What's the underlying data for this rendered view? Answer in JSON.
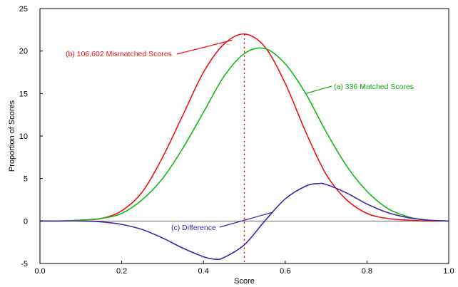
{
  "chart_data": {
    "type": "line",
    "xlabel": "Score",
    "ylabel": "Proportion of Scores",
    "xlim": [
      0,
      1
    ],
    "ylim": [
      -5,
      25
    ],
    "x_ticks": [
      "0.0",
      "0.2",
      "0.4",
      "0.6",
      "0.8",
      "1.0"
    ],
    "y_ticks": [
      "-5",
      "0",
      "5",
      "10",
      "15",
      "20",
      "25"
    ],
    "grid": false,
    "zero_line": true,
    "reference_line": {
      "x": 0.5,
      "style": "dotted",
      "color": "#cc0000"
    },
    "series": [
      {
        "name": "(b) 106,602 Mismatched Scores",
        "color": "#ee1111",
        "x": [
          0.0,
          0.05,
          0.1,
          0.15,
          0.2,
          0.25,
          0.3,
          0.35,
          0.4,
          0.45,
          0.5,
          0.55,
          0.6,
          0.65,
          0.7,
          0.75,
          0.8,
          0.85,
          0.9,
          0.95,
          1.0
        ],
        "y": [
          0.0,
          0.0,
          0.1,
          0.3,
          1.2,
          3.4,
          7.5,
          12.5,
          17.5,
          20.8,
          22.0,
          20.5,
          16.2,
          10.5,
          5.5,
          2.5,
          0.9,
          0.3,
          0.1,
          0.0,
          0.0
        ]
      },
      {
        "name": "(a) 336 Matched Scores",
        "color": "#11bb11",
        "x": [
          0.0,
          0.05,
          0.1,
          0.15,
          0.2,
          0.25,
          0.3,
          0.35,
          0.4,
          0.45,
          0.5,
          0.55,
          0.6,
          0.65,
          0.7,
          0.75,
          0.8,
          0.85,
          0.9,
          0.95,
          1.0
        ],
        "y": [
          0.0,
          0.0,
          0.1,
          0.3,
          0.9,
          2.5,
          5.0,
          8.6,
          12.8,
          17.0,
          19.7,
          20.3,
          18.5,
          15.0,
          10.5,
          6.5,
          3.5,
          1.5,
          0.5,
          0.1,
          0.0
        ]
      },
      {
        "name": "(c) Difference",
        "color": "#4422aa",
        "x": [
          0.0,
          0.05,
          0.1,
          0.15,
          0.2,
          0.25,
          0.3,
          0.35,
          0.4,
          0.43,
          0.45,
          0.5,
          0.55,
          0.6,
          0.65,
          0.68,
          0.7,
          0.75,
          0.8,
          0.85,
          0.9,
          0.95,
          1.0
        ],
        "y": [
          0.0,
          0.0,
          0.0,
          -0.1,
          -0.4,
          -1.0,
          -2.0,
          -3.2,
          -4.2,
          -4.5,
          -4.3,
          -2.8,
          0.0,
          2.6,
          4.1,
          4.4,
          4.3,
          3.3,
          2.0,
          1.0,
          0.4,
          0.1,
          0.0
        ]
      }
    ],
    "annotations": [
      {
        "text": "(b) 106,602 Mismatched Scores",
        "color": "#ee1111",
        "series": 0,
        "at_x": 0.47
      },
      {
        "text": "(a) 336 Matched Scores",
        "color": "#11aa11",
        "series": 1,
        "at_x": 0.65
      },
      {
        "text": "(c) Difference",
        "color": "#4422aa",
        "series": 2,
        "at_x": 0.57
      }
    ]
  }
}
